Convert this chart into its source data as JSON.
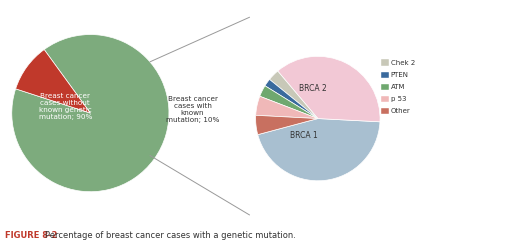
{
  "big_pie_values": [
    90,
    10
  ],
  "big_pie_colors": [
    "#7dab7d",
    "#c0392b"
  ],
  "big_pie_startangle": 162,
  "small_pie_values": [
    45,
    37,
    3,
    2,
    3,
    5,
    5
  ],
  "small_pie_colors": [
    "#a8bfd0",
    "#f2c8d5",
    "#c8c8b8",
    "#3a6a9d",
    "#6fa86f",
    "#f0b8b8",
    "#c87060"
  ],
  "small_pie_startangle": 195,
  "legend_labels": [
    "Chek 2",
    "PTEN",
    "ATM",
    "p 53",
    "Other"
  ],
  "legend_colors": [
    "#c8c8b8",
    "#3a6a9d",
    "#6fa86f",
    "#f0b8b8",
    "#c87060"
  ],
  "caption_bold": "FIGURE 8-2",
  "caption_rest": "   Percentage of breast cancer cases with a genetic mutation.",
  "bg_color": "#ffffff",
  "text_color": "#333333",
  "white": "#ffffff"
}
